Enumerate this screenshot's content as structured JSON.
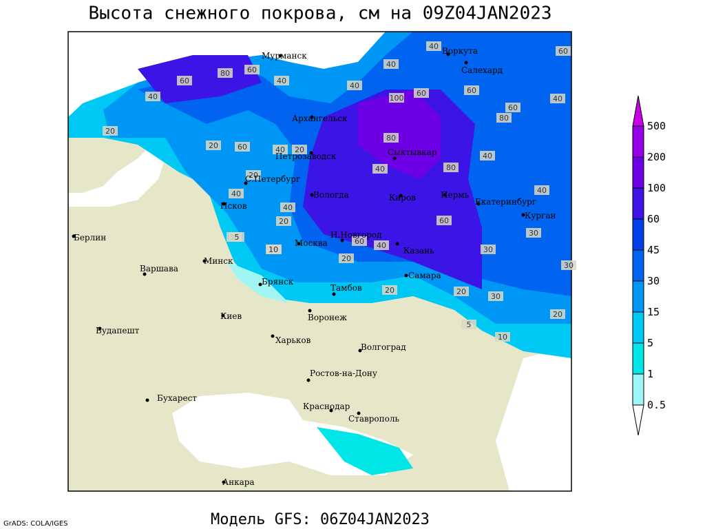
{
  "title": "Высота снежного покрова, см на 09Z04JAN2023",
  "footer": "Модель GFS: 06Z04JAN2023",
  "credit": "GrADS: COLA/IGES",
  "cities": [
    "Мурманск",
    "Воркута",
    "Салехард",
    "Архангельск",
    "Сыктывкар",
    "Петрозаводск",
    "С.Петербург",
    "Вологда",
    "Киров",
    "Пермь",
    "Екатеринбург",
    "Курган",
    "Псков",
    "Н.Новгород",
    "Москва",
    "Казань",
    "Берлин",
    "Минск",
    "Варшава",
    "Самара",
    "Брянск",
    "Тамбов",
    "Киев",
    "Воронеж",
    "Будапешт",
    "Харьков",
    "Волгоград",
    "Ростов-на-Дону",
    "Бухарест",
    "Краснодар",
    "Ставрополь",
    "Анкара"
  ],
  "contour_labels": [
    40,
    80,
    60,
    60,
    40,
    40,
    20,
    60,
    40,
    20,
    40,
    20,
    20,
    40,
    30,
    5,
    10,
    30,
    60,
    40,
    60,
    20,
    20,
    10,
    5,
    20,
    30,
    40,
    100,
    60,
    80,
    80,
    40,
    60,
    40,
    40,
    60,
    40,
    80,
    60,
    30,
    30,
    20,
    10,
    40,
    20
  ],
  "legend": {
    "levels": [
      0.5,
      1,
      5,
      15,
      30,
      45,
      60,
      100,
      200,
      500
    ],
    "colors": [
      "#ffffff",
      "#a0f5f5",
      "#00e6e6",
      "#00c8f5",
      "#0096f5",
      "#0064f0",
      "#0040e6",
      "#3c14e6",
      "#6e00e6",
      "#9600e6",
      "#c800e6"
    ]
  }
}
